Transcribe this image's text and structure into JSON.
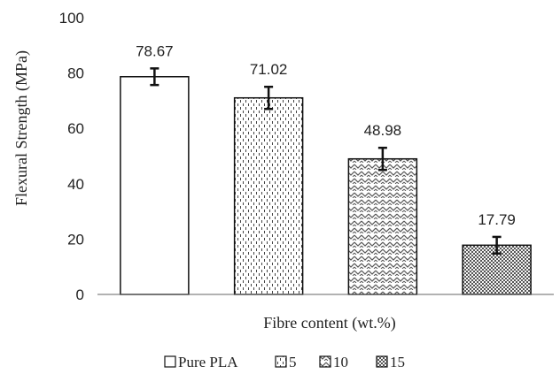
{
  "chart_data": {
    "type": "bar",
    "categories": [
      "Pure PLA",
      "5",
      "10",
      "15"
    ],
    "values": [
      78.67,
      71.02,
      48.98,
      17.79
    ],
    "error": [
      3,
      4,
      4,
      3
    ],
    "data_labels": [
      "78.67",
      "71.02",
      "48.98",
      "17.79"
    ],
    "title": "",
    "xlabel": "Fibre content (wt.%)",
    "ylabel": "Flexural Strength (MPa)",
    "ylim": [
      0,
      100
    ],
    "yticks": [
      0,
      20,
      40,
      60,
      80,
      100
    ],
    "ytick_labels": [
      "0",
      "20",
      "40",
      "60",
      "80",
      "100"
    ],
    "grid": false,
    "legend_position": "bottom",
    "bar_fills": [
      "plain",
      "dashes",
      "zigzag",
      "checker"
    ]
  }
}
